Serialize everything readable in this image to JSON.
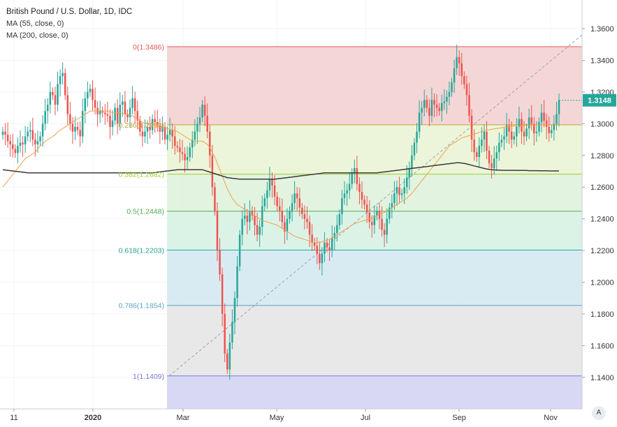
{
  "header": {
    "title": "British Pound / U.S. Dollar, 1D, IDC",
    "indicators": [
      "MA (55, close, 0)",
      "MA (200, close, 0)"
    ]
  },
  "auto_label": "A",
  "colors": {
    "up": "#26a69a",
    "down": "#ef5350",
    "ma55": "#f0a04b",
    "ma200": "#3a3a3a",
    "trend": "#9aa3ad",
    "last_price_bg": "#26a69a"
  },
  "chart_data": {
    "type": "candlestick",
    "symbol": "British Pound / U.S. Dollar, 1D, IDC",
    "y_range": [
      1.12,
      1.37
    ],
    "y_ticks": [
      "1.3600",
      "1.3400",
      "1.3200",
      "1.3000",
      "1.2800",
      "1.2600",
      "1.2400",
      "1.2200",
      "1.2000",
      "1.1800",
      "1.1600",
      "1.1400"
    ],
    "x_ticks": [
      "11",
      "2020",
      "Mar",
      "May",
      "Jul",
      "Sep",
      "Nov"
    ],
    "last_price": "1.3148",
    "fibonacci_levels": [
      {
        "label": "0(1.3486)",
        "price": 1.3486,
        "line": "#e55b55",
        "fill": "#f3d1d1"
      },
      {
        "label": "0.236(1.2993)",
        "price": 1.2993,
        "line": "#c9a23a",
        "fill": "#eaf4d5"
      },
      {
        "label": "0.382(1.2682)",
        "price": 1.2682,
        "line": "#9acd32",
        "fill": "#dff2dc"
      },
      {
        "label": "0.5(1.2448)",
        "price": 1.2448,
        "line": "#4caf50",
        "fill": "#d7f2e4"
      },
      {
        "label": "0.618(1.2203)",
        "price": 1.2203,
        "line": "#26a69a",
        "fill": "#d5e9f1"
      },
      {
        "label": "0.786(1.1854)",
        "price": 1.1854,
        "line": "#5ba3c9",
        "fill": "#e6e6e6"
      },
      {
        "label": "1(1.1409)",
        "price": 1.1409,
        "line": "#7b7bd0",
        "fill": "#d4d4f4"
      }
    ],
    "closes": [
      1.295,
      1.293,
      1.289,
      1.287,
      1.284,
      1.2815,
      1.286,
      1.288,
      1.287,
      1.292,
      1.295,
      1.296,
      1.29,
      1.287,
      1.289,
      1.292,
      1.3,
      1.308,
      1.312,
      1.32,
      1.318,
      1.312,
      1.325,
      1.33,
      1.332,
      1.318,
      1.306,
      1.3,
      1.295,
      1.298,
      1.296,
      1.292,
      1.308,
      1.316,
      1.32,
      1.322,
      1.315,
      1.31,
      1.306,
      1.308,
      1.307,
      1.306,
      1.305,
      1.298,
      1.302,
      1.31,
      1.3,
      1.312,
      1.314,
      1.306,
      1.304,
      1.31,
      1.316,
      1.308,
      1.302,
      1.295,
      1.292,
      1.295,
      1.298,
      1.296,
      1.303,
      1.301,
      1.299,
      1.295,
      1.298,
      1.29,
      1.293,
      1.296,
      1.292,
      1.286,
      1.285,
      1.282,
      1.281,
      1.277,
      1.279,
      1.285,
      1.29,
      1.295,
      1.3,
      1.304,
      1.312,
      1.305,
      1.295,
      1.28,
      1.26,
      1.245,
      1.22,
      1.205,
      1.18,
      1.155,
      1.145,
      1.162,
      1.175,
      1.19,
      1.21,
      1.23,
      1.24,
      1.242,
      1.238,
      1.245,
      1.242,
      1.236,
      1.23,
      1.235,
      1.248,
      1.253,
      1.258,
      1.265,
      1.261,
      1.254,
      1.248,
      1.245,
      1.238,
      1.232,
      1.24,
      1.245,
      1.25,
      1.256,
      1.253,
      1.247,
      1.243,
      1.24,
      1.238,
      1.23,
      1.225,
      1.223,
      1.218,
      1.212,
      1.218,
      1.225,
      1.222,
      1.22,
      1.228,
      1.231,
      1.236,
      1.243,
      1.253,
      1.256,
      1.258,
      1.262,
      1.269,
      1.272,
      1.262,
      1.257,
      1.252,
      1.249,
      1.244,
      1.238,
      1.236,
      1.242,
      1.245,
      1.24,
      1.233,
      1.23,
      1.24,
      1.247,
      1.25,
      1.256,
      1.26,
      1.255,
      1.256,
      1.26,
      1.266,
      1.272,
      1.28,
      1.288,
      1.295,
      1.307,
      1.31,
      1.315,
      1.31,
      1.305,
      1.315,
      1.312,
      1.31,
      1.308,
      1.313,
      1.314,
      1.317,
      1.32,
      1.326,
      1.335,
      1.342,
      1.338,
      1.33,
      1.325,
      1.318,
      1.305,
      1.29,
      1.282,
      1.279,
      1.286,
      1.29,
      1.295,
      1.283,
      1.275,
      1.272,
      1.278,
      1.282,
      1.288,
      1.29,
      1.292,
      1.299,
      1.295,
      1.29,
      1.292,
      1.298,
      1.303,
      1.295,
      1.292,
      1.297,
      1.304,
      1.3,
      1.294,
      1.295,
      1.301,
      1.307,
      1.302,
      1.298,
      1.294,
      1.296,
      1.3,
      1.306,
      1.3148
    ],
    "ma55": [
      1.26,
      1.262,
      1.264,
      1.266,
      1.268,
      1.27,
      1.272,
      1.274,
      1.276,
      1.278,
      1.279,
      1.28,
      1.281,
      1.282,
      1.284,
      1.286,
      1.287,
      1.289,
      1.29,
      1.291,
      1.292,
      1.293,
      1.295,
      1.296,
      1.297,
      1.298,
      1.299,
      1.3,
      1.301,
      1.302,
      1.303,
      1.304,
      1.305,
      1.306,
      1.307,
      1.308,
      1.308,
      1.308,
      1.3085,
      1.3085,
      1.308,
      1.308,
      1.308,
      1.3075,
      1.307,
      1.307,
      1.307,
      1.307,
      1.3065,
      1.306,
      1.306,
      1.3055,
      1.305,
      1.304,
      1.303,
      1.302,
      1.301,
      1.3005,
      1.3,
      1.3,
      1.3,
      1.2995,
      1.299,
      1.2985,
      1.298,
      1.2975,
      1.297,
      1.2965,
      1.296,
      1.2955,
      1.295,
      1.294,
      1.293,
      1.292,
      1.291,
      1.29,
      1.2895,
      1.289,
      1.289,
      1.289,
      1.289,
      1.288,
      1.287,
      1.285,
      1.282,
      1.279,
      1.275,
      1.271,
      1.267,
      1.263,
      1.259,
      1.256,
      1.253,
      1.251,
      1.249,
      1.248,
      1.247,
      1.246,
      1.245,
      1.244,
      1.243,
      1.242,
      1.241,
      1.24,
      1.239,
      1.2385,
      1.238,
      1.2375,
      1.237,
      1.2365,
      1.236,
      1.235,
      1.234,
      1.233,
      1.232,
      1.231,
      1.23,
      1.229,
      1.2285,
      1.228,
      1.2275,
      1.227,
      1.2265,
      1.226,
      1.2255,
      1.225,
      1.225,
      1.225,
      1.2255,
      1.226,
      1.2265,
      1.227,
      1.228,
      1.229,
      1.23,
      1.231,
      1.232,
      1.233,
      1.234,
      1.235,
      1.236,
      1.237,
      1.2375,
      1.238,
      1.2385,
      1.239,
      1.2395,
      1.24,
      1.2405,
      1.241,
      1.242,
      1.243,
      1.2435,
      1.244,
      1.245,
      1.246,
      1.247,
      1.248,
      1.249,
      1.25,
      1.251,
      1.252,
      1.253,
      1.2545,
      1.256,
      1.258,
      1.26,
      1.262,
      1.264,
      1.266,
      1.268,
      1.27,
      1.272,
      1.274,
      1.276,
      1.278,
      1.28,
      1.282,
      1.284,
      1.286,
      1.287,
      1.288,
      1.289,
      1.29,
      1.291,
      1.2915,
      1.292,
      1.2925,
      1.293,
      1.2935,
      1.294,
      1.2945,
      1.295,
      1.2955,
      1.296,
      1.2962,
      1.2965,
      1.2968,
      1.297,
      1.2972,
      1.2975,
      1.2978,
      1.298,
      1.2982,
      1.2984,
      1.2985,
      1.2986,
      1.2987,
      1.2988,
      1.2989,
      1.299,
      1.299,
      1.2991,
      1.2992,
      1.2992,
      1.2993,
      1.2993,
      1.2994,
      1.2994,
      1.2995,
      1.2995,
      1.2996,
      1.2996,
      1.2997
    ],
    "ma200": [
      1.271,
      1.2708,
      1.2706,
      1.2704,
      1.2702,
      1.27,
      1.2698,
      1.2696,
      1.2694,
      1.2692,
      1.269,
      1.269,
      1.269,
      1.269,
      1.269,
      1.269,
      1.269,
      1.269,
      1.269,
      1.269,
      1.269,
      1.269,
      1.269,
      1.269,
      1.269,
      1.269,
      1.269,
      1.269,
      1.269,
      1.269,
      1.269,
      1.269,
      1.269,
      1.269,
      1.269,
      1.269,
      1.269,
      1.269,
      1.269,
      1.269,
      1.269,
      1.269,
      1.269,
      1.269,
      1.269,
      1.269,
      1.269,
      1.269,
      1.269,
      1.269,
      1.269,
      1.269,
      1.269,
      1.269,
      1.269,
      1.269,
      1.269,
      1.269,
      1.269,
      1.269,
      1.269,
      1.2692,
      1.2694,
      1.2696,
      1.2698,
      1.27,
      1.2702,
      1.2704,
      1.2706,
      1.2708,
      1.271,
      1.271,
      1.271,
      1.271,
      1.271,
      1.271,
      1.271,
      1.271,
      1.271,
      1.271,
      1.271,
      1.2705,
      1.27,
      1.2695,
      1.269,
      1.2685,
      1.268,
      1.2675,
      1.267,
      1.2665,
      1.266,
      1.2658,
      1.2656,
      1.2654,
      1.2652,
      1.265,
      1.265,
      1.265,
      1.265,
      1.265,
      1.265,
      1.265,
      1.265,
      1.265,
      1.265,
      1.265,
      1.265,
      1.265,
      1.265,
      1.265,
      1.2652,
      1.2654,
      1.2656,
      1.2658,
      1.266,
      1.2662,
      1.2664,
      1.2666,
      1.2668,
      1.267,
      1.2672,
      1.2674,
      1.2676,
      1.2678,
      1.268,
      1.2682,
      1.2684,
      1.2686,
      1.2688,
      1.269,
      1.269,
      1.269,
      1.269,
      1.269,
      1.269,
      1.269,
      1.269,
      1.269,
      1.269,
      1.269,
      1.269,
      1.269,
      1.269,
      1.269,
      1.269,
      1.269,
      1.269,
      1.269,
      1.269,
      1.269,
      1.269,
      1.2692,
      1.2694,
      1.2696,
      1.2698,
      1.27,
      1.2702,
      1.2704,
      1.2706,
      1.2708,
      1.271,
      1.2712,
      1.2714,
      1.2716,
      1.2718,
      1.272,
      1.2722,
      1.2724,
      1.2726,
      1.2728,
      1.273,
      1.2732,
      1.2734,
      1.2736,
      1.2738,
      1.274,
      1.2742,
      1.2744,
      1.2746,
      1.2748,
      1.275,
      1.2752,
      1.2754,
      1.2754,
      1.2752,
      1.275,
      1.2746,
      1.2742,
      1.2738,
      1.2734,
      1.273,
      1.2726,
      1.2722,
      1.2718,
      1.2714,
      1.2712,
      1.271,
      1.2709,
      1.2708,
      1.2707,
      1.2706,
      1.2706,
      1.2706,
      1.2706,
      1.2706,
      1.2706,
      1.2705,
      1.2705,
      1.2705,
      1.2705,
      1.2705,
      1.2704,
      1.2704,
      1.2704,
      1.2704,
      1.2703,
      1.2703,
      1.2703,
      1.2703,
      1.2702,
      1.2702,
      1.2702,
      1.2702,
      1.2702
    ]
  }
}
